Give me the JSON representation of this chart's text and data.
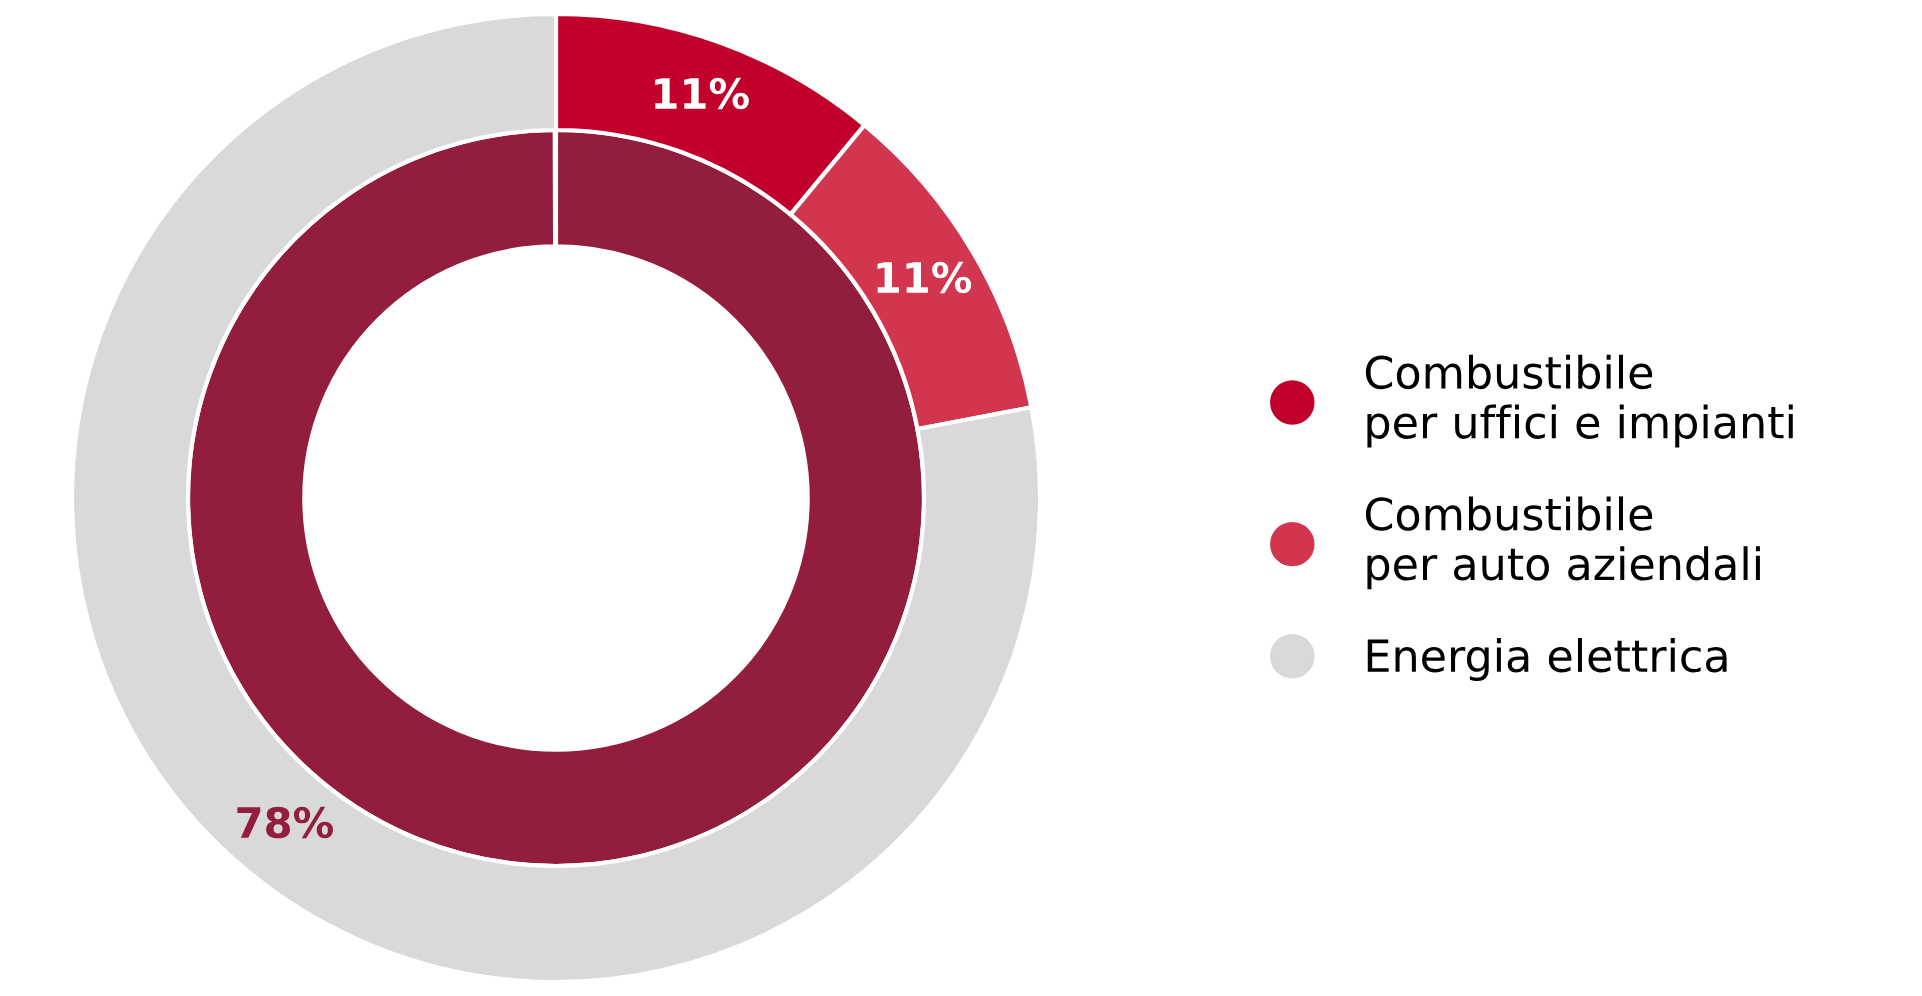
{
  "chart_data": {
    "type": "donut",
    "categories": [
      "Combustibile\nper uffici e impianti",
      "Combustibile\nper auto aziendali",
      "Energia elettrica"
    ],
    "values": [
      11,
      11,
      78
    ],
    "value_labels": [
      "11%",
      "11%",
      "78%"
    ],
    "colors": [
      "#c1002b",
      "#d2364f",
      "#d9d9d9"
    ],
    "data_labels": true,
    "legend": "right"
  }
}
